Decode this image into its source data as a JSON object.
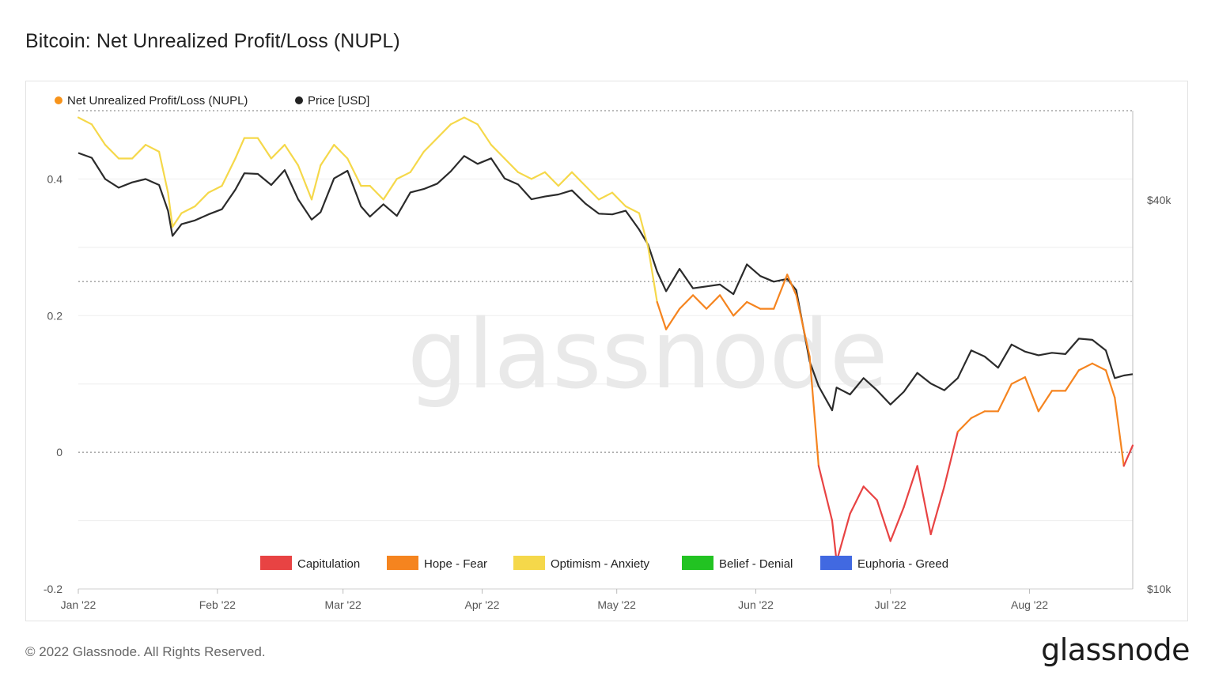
{
  "title": "Bitcoin: Net Unrealized Profit/Loss (NUPL)",
  "footer": "© 2022 Glassnode. All Rights Reserved.",
  "brand": "glassnode",
  "watermark": "glassnode",
  "chart_data": {
    "type": "line",
    "legend_top": [
      {
        "name": "Net Unrealized Profit/Loss (NUPL)",
        "color": "#f7931a"
      },
      {
        "name": "Price [USD]",
        "color": "#222222"
      }
    ],
    "zone_legend": [
      {
        "name": "Capitulation",
        "color": "#e84343"
      },
      {
        "name": "Hope - Fear",
        "color": "#f5841f"
      },
      {
        "name": "Optimism - Anxiety",
        "color": "#f5d84a"
      },
      {
        "name": "Belief - Denial",
        "color": "#22c322"
      },
      {
        "name": "Euphoria - Greed",
        "color": "#4169e1"
      }
    ],
    "x_ticks": [
      "Jan '22",
      "Feb '22",
      "Mar '22",
      "Apr '22",
      "May '22",
      "Jun '22",
      "Jul '22",
      "Aug '22"
    ],
    "y_left_ticks": [
      "0.4",
      "0.2",
      "0",
      "-0.2"
    ],
    "y_left_tick_values": [
      0.4,
      0.2,
      0,
      -0.2
    ],
    "y_right_ticks": [
      "$40k",
      "$10k"
    ],
    "y_right_tick_values": [
      40000,
      10000
    ],
    "y_left_range": [
      -0.2,
      0.5
    ],
    "y_right_scale": "log",
    "y_right_range": [
      10000,
      55000
    ],
    "zone_thresholds": [
      0,
      0.25,
      0.5
    ],
    "x_range": [
      "2022-01-01",
      "2022-08-24"
    ],
    "series": [
      {
        "name": "Net Unrealized Profit/Loss (NUPL)",
        "x": [
          "2022-01-01",
          "2022-01-04",
          "2022-01-07",
          "2022-01-10",
          "2022-01-13",
          "2022-01-16",
          "2022-01-19",
          "2022-01-21",
          "2022-01-22",
          "2022-01-24",
          "2022-01-27",
          "2022-01-30",
          "2022-02-02",
          "2022-02-05",
          "2022-02-07",
          "2022-02-10",
          "2022-02-13",
          "2022-02-16",
          "2022-02-19",
          "2022-02-22",
          "2022-02-24",
          "2022-02-27",
          "2022-03-02",
          "2022-03-05",
          "2022-03-07",
          "2022-03-10",
          "2022-03-13",
          "2022-03-16",
          "2022-03-19",
          "2022-03-22",
          "2022-03-25",
          "2022-03-28",
          "2022-03-31",
          "2022-04-03",
          "2022-04-06",
          "2022-04-09",
          "2022-04-12",
          "2022-04-15",
          "2022-04-18",
          "2022-04-21",
          "2022-04-24",
          "2022-04-27",
          "2022-04-30",
          "2022-05-03",
          "2022-05-06",
          "2022-05-08",
          "2022-05-10",
          "2022-05-12",
          "2022-05-15",
          "2022-05-18",
          "2022-05-21",
          "2022-05-24",
          "2022-05-27",
          "2022-05-30",
          "2022-06-02",
          "2022-06-05",
          "2022-06-08",
          "2022-06-10",
          "2022-06-13",
          "2022-06-15",
          "2022-06-18",
          "2022-06-19",
          "2022-06-22",
          "2022-06-25",
          "2022-06-28",
          "2022-07-01",
          "2022-07-04",
          "2022-07-07",
          "2022-07-10",
          "2022-07-13",
          "2022-07-16",
          "2022-07-19",
          "2022-07-22",
          "2022-07-25",
          "2022-07-28",
          "2022-07-31",
          "2022-08-03",
          "2022-08-06",
          "2022-08-09",
          "2022-08-12",
          "2022-08-15",
          "2022-08-18",
          "2022-08-20",
          "2022-08-22",
          "2022-08-24"
        ],
        "y": [
          0.49,
          0.48,
          0.45,
          0.43,
          0.43,
          0.45,
          0.44,
          0.38,
          0.33,
          0.35,
          0.36,
          0.38,
          0.39,
          0.43,
          0.46,
          0.46,
          0.43,
          0.45,
          0.42,
          0.37,
          0.42,
          0.45,
          0.43,
          0.39,
          0.39,
          0.37,
          0.4,
          0.41,
          0.44,
          0.46,
          0.48,
          0.49,
          0.48,
          0.45,
          0.43,
          0.41,
          0.4,
          0.41,
          0.39,
          0.41,
          0.39,
          0.37,
          0.38,
          0.36,
          0.35,
          0.3,
          0.22,
          0.18,
          0.21,
          0.23,
          0.21,
          0.23,
          0.2,
          0.22,
          0.21,
          0.21,
          0.26,
          0.23,
          0.14,
          -0.02,
          -0.1,
          -0.16,
          -0.09,
          -0.05,
          -0.07,
          -0.13,
          -0.08,
          -0.02,
          -0.12,
          -0.05,
          0.03,
          0.05,
          0.06,
          0.06,
          0.1,
          0.11,
          0.06,
          0.09,
          0.09,
          0.12,
          0.13,
          0.12,
          0.08,
          -0.02,
          0.01
        ]
      },
      {
        "name": "Price [USD]",
        "x": [
          "2022-01-01",
          "2022-01-04",
          "2022-01-07",
          "2022-01-10",
          "2022-01-13",
          "2022-01-16",
          "2022-01-19",
          "2022-01-21",
          "2022-01-22",
          "2022-01-24",
          "2022-01-27",
          "2022-01-30",
          "2022-02-02",
          "2022-02-05",
          "2022-02-07",
          "2022-02-10",
          "2022-02-13",
          "2022-02-16",
          "2022-02-19",
          "2022-02-22",
          "2022-02-24",
          "2022-02-27",
          "2022-03-02",
          "2022-03-05",
          "2022-03-07",
          "2022-03-10",
          "2022-03-13",
          "2022-03-16",
          "2022-03-19",
          "2022-03-22",
          "2022-03-25",
          "2022-03-28",
          "2022-03-31",
          "2022-04-03",
          "2022-04-06",
          "2022-04-09",
          "2022-04-12",
          "2022-04-15",
          "2022-04-18",
          "2022-04-21",
          "2022-04-24",
          "2022-04-27",
          "2022-04-30",
          "2022-05-03",
          "2022-05-06",
          "2022-05-08",
          "2022-05-10",
          "2022-05-12",
          "2022-05-15",
          "2022-05-18",
          "2022-05-21",
          "2022-05-24",
          "2022-05-27",
          "2022-05-30",
          "2022-06-02",
          "2022-06-05",
          "2022-06-08",
          "2022-06-10",
          "2022-06-13",
          "2022-06-15",
          "2022-06-18",
          "2022-06-19",
          "2022-06-22",
          "2022-06-25",
          "2022-06-28",
          "2022-07-01",
          "2022-07-04",
          "2022-07-07",
          "2022-07-10",
          "2022-07-13",
          "2022-07-16",
          "2022-07-19",
          "2022-07-22",
          "2022-07-25",
          "2022-07-28",
          "2022-07-31",
          "2022-08-03",
          "2022-08-06",
          "2022-08-09",
          "2022-08-12",
          "2022-08-15",
          "2022-08-18",
          "2022-08-20",
          "2022-08-22",
          "2022-08-24"
        ],
        "y": [
          47300,
          46500,
          43100,
          41800,
          42600,
          43100,
          42200,
          38500,
          35200,
          36700,
          37200,
          38000,
          38700,
          41500,
          44000,
          43900,
          42200,
          44500,
          40100,
          37300,
          38300,
          43200,
          44400,
          39100,
          37700,
          39400,
          37800,
          41100,
          41600,
          42400,
          44300,
          46800,
          45500,
          46400,
          43200,
          42300,
          40100,
          40500,
          40800,
          41400,
          39500,
          38100,
          38000,
          38500,
          36000,
          34100,
          31000,
          28900,
          31300,
          29200,
          29400,
          29600,
          28600,
          31800,
          30500,
          29900,
          30200,
          29000,
          22500,
          20600,
          18900,
          20500,
          20000,
          21200,
          20300,
          19300,
          20200,
          21600,
          20800,
          20300,
          21200,
          23400,
          22900,
          22000,
          23900,
          23300,
          23000,
          23200,
          23100,
          24400,
          24300,
          23400,
          21200,
          21400,
          21500
        ]
      }
    ]
  }
}
